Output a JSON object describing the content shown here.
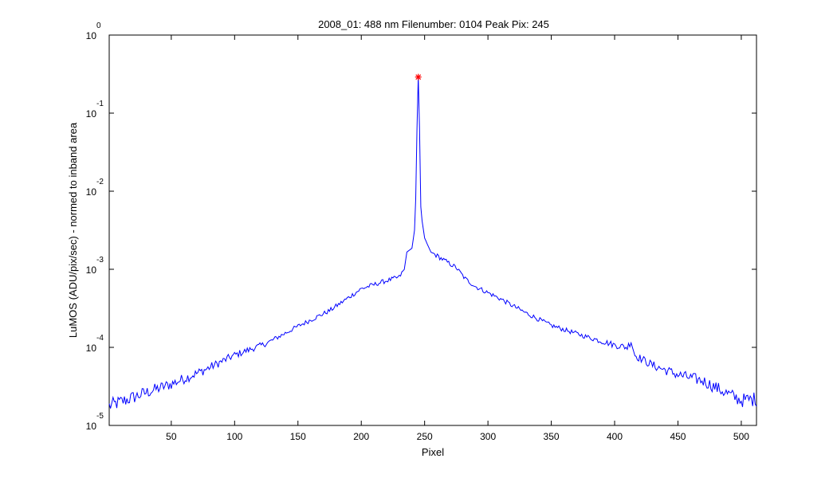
{
  "chart_data": {
    "type": "line",
    "title": "2008_01: 488 nm  Filenumber: 0104 Peak Pix: 245",
    "xlabel": "Pixel",
    "ylabel": "LuMOS (ADU/pix/sec) - normed to inband area",
    "xlim": [
      1,
      512
    ],
    "ylim": [
      1e-05,
      1
    ],
    "yscale": "log",
    "grid": false,
    "x_ticks": [
      {
        "value": 50,
        "label": "50"
      },
      {
        "value": 100,
        "label": "100"
      },
      {
        "value": 150,
        "label": "150"
      },
      {
        "value": 200,
        "label": "200"
      },
      {
        "value": 250,
        "label": "250"
      },
      {
        "value": 300,
        "label": "300"
      },
      {
        "value": 350,
        "label": "350"
      },
      {
        "value": 400,
        "label": "400"
      },
      {
        "value": 450,
        "label": "450"
      },
      {
        "value": 500,
        "label": "500"
      }
    ],
    "y_ticks": [
      {
        "value": 1,
        "base": "10",
        "exp": "0"
      },
      {
        "value": 0.1,
        "base": "10",
        "exp": "-1"
      },
      {
        "value": 0.01,
        "base": "10",
        "exp": "-2"
      },
      {
        "value": 0.001,
        "base": "10",
        "exp": "-3"
      },
      {
        "value": 0.0001,
        "base": "10",
        "exp": "-4"
      },
      {
        "value": 1e-05,
        "base": "10",
        "exp": "-5"
      }
    ],
    "series": [
      {
        "color": "#0000ff",
        "anchors_log10": [
          [
            1,
            -4.75
          ],
          [
            10,
            -4.7
          ],
          [
            30,
            -4.58
          ],
          [
            50,
            -4.47
          ],
          [
            75,
            -4.3
          ],
          [
            100,
            -4.1
          ],
          [
            125,
            -3.95
          ],
          [
            150,
            -3.73
          ],
          [
            175,
            -3.53
          ],
          [
            200,
            -3.25
          ],
          [
            215,
            -3.17
          ],
          [
            230,
            -3.1
          ],
          [
            234,
            -3.0
          ],
          [
            236,
            -2.78
          ],
          [
            240,
            -2.73
          ],
          [
            242,
            -2.5
          ],
          [
            243,
            -2.1
          ],
          [
            244,
            -1.2
          ],
          [
            245,
            -0.53
          ],
          [
            246,
            -1.2
          ],
          [
            247,
            -2.2
          ],
          [
            248,
            -2.38
          ],
          [
            250,
            -2.6
          ],
          [
            255,
            -2.78
          ],
          [
            265,
            -2.88
          ],
          [
            275,
            -2.98
          ],
          [
            282,
            -3.12
          ],
          [
            290,
            -3.22
          ],
          [
            310,
            -3.38
          ],
          [
            330,
            -3.56
          ],
          [
            350,
            -3.72
          ],
          [
            375,
            -3.85
          ],
          [
            400,
            -3.97
          ],
          [
            410,
            -4.0
          ],
          [
            413,
            -3.92
          ],
          [
            416,
            -4.1
          ],
          [
            430,
            -4.23
          ],
          [
            450,
            -4.35
          ],
          [
            470,
            -4.43
          ],
          [
            490,
            -4.6
          ],
          [
            500,
            -4.68
          ],
          [
            512,
            -4.66
          ]
        ],
        "noise_amplitude_log10": 0.06
      }
    ],
    "peak_marker": {
      "x": 245,
      "y": 0.29,
      "symbol": "*",
      "color": "#ff0000"
    }
  }
}
